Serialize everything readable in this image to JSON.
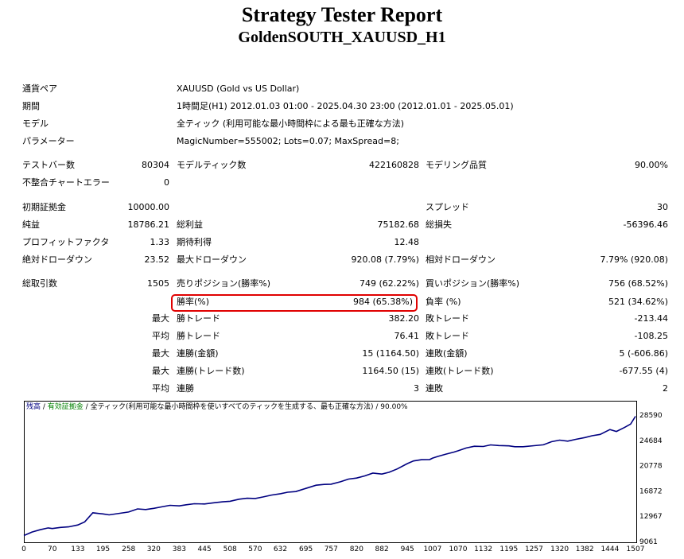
{
  "header": {
    "title": "Strategy Tester Report",
    "subtitle": "GoldenSOUTH_XAUUSD_H1"
  },
  "info": {
    "pair_label": "通貨ペア",
    "pair_value": "XAUUSD (Gold vs US Dollar)",
    "period_label": "期間",
    "period_value": "1時間足(H1) 2012.01.03 01:00 - 2025.04.30 23:00 (2012.01.01 - 2025.05.01)",
    "model_label": "モデル",
    "model_value": "全ティック (利用可能な最小時間枠による最も正確な方法)",
    "params_label": "パラメーター",
    "params_value": "MagicNumber=555002; Lots=0.07; MaxSpread=8;"
  },
  "stats": {
    "bars_label": "テストバー数",
    "bars_value": "80304",
    "model_ticks_label": "モデルティック数",
    "model_ticks_value": "422160828",
    "model_quality_label": "モデリング品質",
    "model_quality_value": "90.00%",
    "mismatch_label": "不整合チャートエラー",
    "mismatch_value": "0",
    "deposit_label": "初期証拠金",
    "deposit_value": "10000.00",
    "spread_label": "スプレッド",
    "spread_value": "30",
    "net_label": "純益",
    "net_value": "18786.21",
    "gross_profit_label": "総利益",
    "gross_profit_value": "75182.68",
    "gross_loss_label": "総損失",
    "gross_loss_value": "-56396.46",
    "pf_label": "プロフィットファクタ",
    "pf_value": "1.33",
    "expected_label": "期待利得",
    "expected_value": "12.48",
    "abs_dd_label": "絶対ドローダウン",
    "abs_dd_value": "23.52",
    "max_dd_label": "最大ドローダウン",
    "max_dd_value": "920.08 (7.79%)",
    "rel_dd_label": "相対ドローダウン",
    "rel_dd_value": "7.79% (920.08)",
    "trades_label": "総取引数",
    "trades_value": "1505",
    "short_label": "売りポジション(勝率%)",
    "short_value": "749 (62.22%)",
    "long_label": "買いポジション(勝率%)",
    "long_value": "756 (68.52%)",
    "winrate_label": "勝率(%)",
    "winrate_value": "984 (65.38%)",
    "lossrate_label": "負率 (%)",
    "lossrate_value": "521 (34.62%)",
    "max_word": "最大",
    "avg_word": "平均",
    "largest_win_label": "勝トレード",
    "largest_win_value": "382.20",
    "largest_loss_label": "敗トレード",
    "largest_loss_value": "-213.44",
    "avg_win_label": "勝トレード",
    "avg_win_value": "76.41",
    "avg_loss_label": "敗トレード",
    "avg_loss_value": "-108.25",
    "max_cons_wins_label": "連勝(金額)",
    "max_cons_wins_value": "15 (1164.50)",
    "max_cons_losses_label": "連敗(金額)",
    "max_cons_losses_value": "5 (-606.86)",
    "max_cons_profit_label": "連勝(トレード数)",
    "max_cons_profit_value": "1164.50 (15)",
    "max_cons_loss_label": "連敗(トレード数)",
    "max_cons_loss_value": "-677.55 (4)",
    "avg_cons_wins_label": "連勝",
    "avg_cons_wins_value": "3",
    "avg_cons_losses_label": "連敗",
    "avg_cons_losses_value": "2"
  },
  "chart_legend": {
    "balance": "残高",
    "sep1": " / ",
    "equity": "有効証拠金",
    "sep2": " / ",
    "model": "全ティック(利用可能な最小時間枠を使いすべてのティックを生成する、最も正確な方法)",
    "sep3": " / ",
    "quality": "90.00%"
  },
  "colors": {
    "line": "#000080",
    "highlight": "#e00000",
    "legend_balance": "#000080",
    "legend_equity": "#008000"
  },
  "chart_data": {
    "type": "line",
    "xlabel": "",
    "ylabel": "",
    "x_ticks": [
      "0",
      "70",
      "133",
      "195",
      "258",
      "320",
      "383",
      "445",
      "508",
      "570",
      "632",
      "695",
      "757",
      "820",
      "882",
      "945",
      "1007",
      "1070",
      "1132",
      "1195",
      "1257",
      "1320",
      "1382",
      "1444",
      "1507"
    ],
    "y_ticks": [
      "28590",
      "24684",
      "20778",
      "16872",
      "12967",
      "9061"
    ],
    "xlim": [
      0,
      1507
    ],
    "ylim": [
      9061,
      28590
    ],
    "series": [
      {
        "x": [
          0,
          20,
          40,
          60,
          70,
          90,
          110,
          133,
          150,
          170,
          195,
          210,
          230,
          258,
          280,
          300,
          320,
          340,
          360,
          383,
          400,
          420,
          445,
          470,
          490,
          508,
          530,
          550,
          570,
          590,
          610,
          632,
          650,
          670,
          695,
          720,
          740,
          757,
          780,
          800,
          820,
          840,
          860,
          882,
          900,
          920,
          945,
          960,
          980,
          1000,
          1007,
          1020,
          1040,
          1060,
          1070,
          1090,
          1110,
          1132,
          1150,
          1170,
          1195,
          1210,
          1230,
          1257,
          1280,
          1300,
          1320,
          1340,
          1360,
          1382,
          1400,
          1420,
          1444,
          1460,
          1480,
          1495,
          1507
        ],
        "y": [
          9980,
          10520,
          10880,
          11160,
          11060,
          11240,
          11320,
          11620,
          12100,
          13500,
          13320,
          13180,
          13360,
          13620,
          14100,
          14000,
          14180,
          14420,
          14650,
          14560,
          14740,
          14900,
          14860,
          15050,
          15190,
          15280,
          15600,
          15740,
          15700,
          15950,
          16240,
          16440,
          16680,
          16780,
          17260,
          17760,
          17880,
          17920,
          18280,
          18700,
          18860,
          19200,
          19620,
          19480,
          19760,
          20280,
          21100,
          21500,
          21700,
          21720,
          21940,
          22200,
          22560,
          22880,
          23080,
          23500,
          23780,
          23740,
          23980,
          23880,
          23840,
          23700,
          23700,
          23860,
          24000,
          24480,
          24720,
          24560,
          24850,
          25120,
          25400,
          25600,
          26360,
          26060,
          26680,
          27200,
          28400
        ]
      }
    ]
  }
}
